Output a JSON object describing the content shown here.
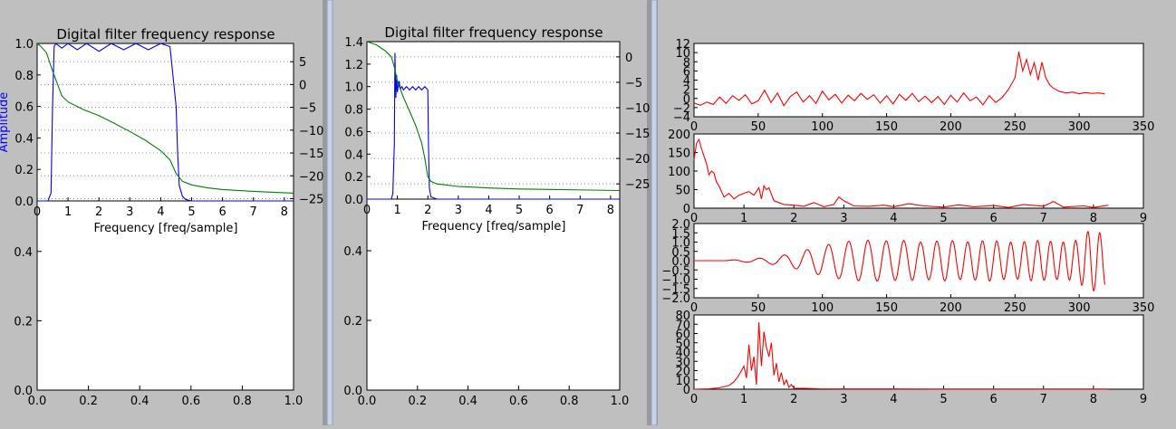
{
  "colors": {
    "window_bg": "#bfbfbf",
    "axes_bg": "#ffffff",
    "blue_trace": "#0000ff",
    "green_trace": "#008000",
    "red_trace": "#ff0000",
    "grid": "#888888",
    "amplitude_label": "#0000ff"
  },
  "chart_data": [
    {
      "id": "left_panel",
      "type": "line",
      "title": "Digital filter frequency response",
      "xlabel": "Frequency [freq/sample]",
      "ylabel_left": "Amplitude",
      "ylabel_right": "",
      "top_axes": {
        "xlim": [
          0,
          8.3
        ],
        "xticks": [
          "0",
          "1",
          "2",
          "3",
          "4",
          "5",
          "6",
          "7",
          "8"
        ],
        "left_ylim": [
          0,
          1.0
        ],
        "left_yticks": [
          "0.0",
          "0.2",
          "0.4",
          "0.6",
          "0.8",
          "1.0"
        ],
        "right_ylim": [
          -25.5,
          9
        ],
        "right_yticks": [
          "5",
          "0",
          "−5",
          "−10",
          "−15",
          "−20",
          "−25"
        ],
        "grid": "horizontal dotted at right-axis ticks",
        "series": [
          {
            "color": "blue",
            "axis": "left",
            "x": [
              0,
              0.35,
              0.45,
              0.5,
              0.55,
              0.6,
              0.8,
              1.0,
              1.3,
              1.6,
              2.0,
              2.4,
              2.8,
              3.2,
              3.6,
              4.0,
              4.3,
              4.5,
              4.55,
              4.6,
              4.7,
              4.8,
              5.0,
              5.5,
              8.3
            ],
            "y": [
              0,
              0,
              0.05,
              0.6,
              0.98,
              1.0,
              0.97,
              1.0,
              0.96,
              1.0,
              0.95,
              1.0,
              0.96,
              1.0,
              0.96,
              1.0,
              0.98,
              0.6,
              0.3,
              0.1,
              0.03,
              0.01,
              0,
              0,
              0
            ]
          },
          {
            "color": "green",
            "axis": "right",
            "x": [
              0,
              0.1,
              0.3,
              0.5,
              0.8,
              1.0,
              1.5,
              2.0,
              2.5,
              3.0,
              3.5,
              4.0,
              4.3,
              4.5,
              4.7,
              5.0,
              5.5,
              6.0,
              7.0,
              8.3
            ],
            "y": [
              9,
              8.5,
              7,
              3,
              -2.5,
              -3.8,
              -5.5,
              -6.8,
              -8.5,
              -10.3,
              -12.2,
              -14.5,
              -16.5,
              -19.5,
              -21.2,
              -22,
              -22.6,
              -23,
              -23.4,
              -23.8
            ]
          }
        ]
      },
      "background_axes": {
        "xlim": [
          0.0,
          1.0
        ],
        "ylim": [
          0.0,
          1.0
        ],
        "xticks": [
          "0.0",
          "0.2",
          "0.4",
          "0.6",
          "0.8",
          "1.0"
        ],
        "yticks": [
          "0.0",
          "0.2",
          "0.4"
        ]
      }
    },
    {
      "id": "middle_panel",
      "type": "line",
      "title": "Digital filter frequency response",
      "xlabel": "Frequency [freq/sample]",
      "ylabel_left": "",
      "ylabel_right": "",
      "top_axes": {
        "xlim": [
          0,
          8.3
        ],
        "xticks": [
          "0",
          "1",
          "2",
          "3",
          "4",
          "5",
          "6",
          "7",
          "8"
        ],
        "left_ylim": [
          0,
          1.4
        ],
        "left_yticks": [
          "0.0",
          "0.2",
          "0.4",
          "0.6",
          "0.8",
          "1.0",
          "1.2",
          "1.4"
        ],
        "right_ylim": [
          -28,
          3
        ],
        "right_yticks": [
          "0",
          "−5",
          "−10",
          "−15",
          "−20",
          "−25"
        ],
        "grid": "horizontal dotted at right-axis ticks",
        "series": [
          {
            "color": "blue",
            "axis": "left",
            "x": [
              0,
              0.8,
              0.85,
              0.9,
              0.92,
              0.95,
              0.98,
              1.0,
              1.05,
              1.1,
              1.15,
              1.2,
              1.3,
              1.4,
              1.5,
              1.6,
              1.7,
              1.8,
              1.9,
              2.0,
              2.02,
              2.05,
              2.1,
              2.3,
              8.3
            ],
            "y": [
              0,
              0,
              0.05,
              0.5,
              1.3,
              0.9,
              1.1,
              0.95,
              1.05,
              0.98,
              1.0,
              0.97,
              1.0,
              0.97,
              1.0,
              0.97,
              1.0,
              0.97,
              1.0,
              0.97,
              0.5,
              0.1,
              0.02,
              0,
              0
            ]
          },
          {
            "color": "green",
            "axis": "right",
            "x": [
              0,
              0.3,
              0.6,
              0.8,
              0.9,
              1.0,
              1.2,
              1.4,
              1.6,
              1.8,
              1.9,
              2.0,
              2.1,
              2.3,
              3.0,
              4.0,
              5.0,
              6.0,
              8.3
            ],
            "y": [
              3,
              2.4,
              1.2,
              0,
              -2,
              -4.8,
              -8,
              -10.7,
              -13.5,
              -17,
              -20,
              -23.6,
              -24.5,
              -25,
              -25.5,
              -25.8,
              -26,
              -26.1,
              -26.3
            ]
          }
        ]
      },
      "background_axes": {
        "xlim": [
          0.0,
          1.0
        ],
        "ylim": [
          0.0,
          1.0
        ],
        "xticks": [
          "0.0",
          "0.2",
          "0.4",
          "0.6",
          "0.8",
          "1.0"
        ],
        "yticks": [
          "0.0",
          "0.2",
          "0.4"
        ]
      }
    },
    {
      "id": "right_panel_1",
      "type": "line",
      "title": "",
      "xlim": [
        0,
        350
      ],
      "ylim": [
        -4,
        12
      ],
      "xticks": [
        "0",
        "50",
        "100",
        "150",
        "200",
        "250",
        "300",
        "350"
      ],
      "yticks": [
        "12",
        "10",
        "8",
        "6",
        "4",
        "2",
        "0",
        "−2",
        "−4"
      ],
      "series": [
        {
          "color": "red",
          "x": [
            0,
            5,
            10,
            15,
            20,
            25,
            30,
            35,
            40,
            45,
            50,
            55,
            60,
            65,
            70,
            75,
            80,
            85,
            90,
            95,
            100,
            105,
            110,
            115,
            120,
            125,
            130,
            135,
            140,
            145,
            150,
            155,
            160,
            165,
            170,
            175,
            180,
            185,
            190,
            195,
            200,
            205,
            210,
            215,
            220,
            225,
            230,
            235,
            240,
            245,
            250,
            253,
            256,
            259,
            262,
            265,
            268,
            271,
            274,
            277,
            280,
            285,
            290,
            295,
            300,
            305,
            310,
            315,
            320
          ],
          "y": [
            -1,
            -1.5,
            -0.8,
            -1.3,
            0.3,
            -1.1,
            0.6,
            -0.4,
            0.8,
            -1.2,
            -0.5,
            1.8,
            -0.9,
            1.2,
            -1.6,
            0.4,
            1.4,
            -0.8,
            0.6,
            -1.1,
            1.6,
            -0.3,
            0.9,
            -1.0,
            0.7,
            -0.5,
            1.1,
            -0.2,
            0.8,
            -1.0,
            0.6,
            -1.2,
            0.9,
            -0.4,
            1.1,
            -0.7,
            0.5,
            -0.9,
            0.4,
            -1.3,
            0.7,
            -0.8,
            1.2,
            -0.5,
            0.3,
            -1.4,
            0.6,
            -0.9,
            0.2,
            2.0,
            4.5,
            10.2,
            6.0,
            8.5,
            5.2,
            7.8,
            4.0,
            7.9,
            4.5,
            3.0,
            2.2,
            1.5,
            1.2,
            1.4,
            1.0,
            1.3,
            1.1,
            1.2,
            1.0
          ]
        }
      ]
    },
    {
      "id": "right_panel_2",
      "type": "line",
      "title": "",
      "xlim": [
        0,
        9
      ],
      "ylim": [
        0,
        200
      ],
      "xticks": [
        "0",
        "1",
        "2",
        "3",
        "4",
        "5",
        "6",
        "7",
        "8",
        "9"
      ],
      "yticks": [
        "200",
        "150",
        "100",
        "50",
        "0"
      ],
      "series": [
        {
          "color": "red",
          "x": [
            0,
            0.05,
            0.1,
            0.15,
            0.2,
            0.25,
            0.3,
            0.35,
            0.4,
            0.45,
            0.5,
            0.6,
            0.7,
            0.8,
            0.9,
            1.0,
            1.1,
            1.2,
            1.3,
            1.35,
            1.4,
            1.45,
            1.5,
            1.6,
            1.8,
            2.0,
            2.2,
            2.4,
            2.6,
            2.8,
            2.9,
            3.0,
            3.2,
            3.5,
            3.8,
            4.0,
            4.3,
            4.6,
            5.0,
            5.3,
            5.6,
            6.0,
            6.3,
            6.6,
            7.0,
            7.2,
            7.4,
            7.8,
            8.0,
            8.3
          ],
          "y": [
            130,
            175,
            185,
            160,
            140,
            120,
            90,
            100,
            95,
            70,
            60,
            30,
            40,
            25,
            35,
            40,
            45,
            35,
            55,
            25,
            60,
            50,
            55,
            20,
            10,
            8,
            5,
            15,
            4,
            10,
            30,
            20,
            6,
            5,
            8,
            4,
            12,
            6,
            3,
            9,
            4,
            7,
            2,
            10,
            5,
            18,
            3,
            6,
            2,
            8
          ]
        }
      ]
    },
    {
      "id": "right_panel_3",
      "type": "line",
      "title": "",
      "xlim": [
        0,
        350
      ],
      "ylim": [
        -2.0,
        2.0
      ],
      "xticks": [
        "0",
        "50",
        "100",
        "150",
        "200",
        "250",
        "300",
        "350"
      ],
      "yticks": [
        "2.0",
        "1.5",
        "1.0",
        "0.5",
        "0.0",
        "−0.5",
        "−1.0",
        "−1.5",
        "−2.0"
      ],
      "series": [
        {
          "color": "red",
          "x_start": 0,
          "x_end": 320,
          "form": "damped-onset oscillation",
          "amplitude_samples": [
            0,
            0,
            0,
            0.05,
            0.1,
            0.15,
            0.25,
            0.4,
            0.6,
            0.8,
            0.95,
            1.05,
            1.1,
            1.1,
            1.05,
            1.1,
            1.0,
            1.05,
            1.1,
            1.0,
            1.05,
            1.1,
            1.0,
            1.0,
            1.1,
            1.05,
            1.0,
            1.1,
            1.7,
            1.4
          ]
        }
      ]
    },
    {
      "id": "right_panel_4",
      "type": "line",
      "title": "",
      "xlim": [
        0,
        9
      ],
      "ylim": [
        0,
        80
      ],
      "xticks": [
        "0",
        "1",
        "2",
        "3",
        "4",
        "5",
        "6",
        "7",
        "8",
        "9"
      ],
      "yticks": [
        "80",
        "70",
        "60",
        "50",
        "40",
        "30",
        "20",
        "10",
        "0"
      ],
      "series": [
        {
          "color": "red",
          "x": [
            0,
            0.3,
            0.5,
            0.7,
            0.8,
            0.9,
            1.0,
            1.05,
            1.1,
            1.15,
            1.2,
            1.25,
            1.3,
            1.35,
            1.4,
            1.45,
            1.5,
            1.55,
            1.6,
            1.65,
            1.7,
            1.75,
            1.8,
            1.85,
            1.9,
            1.95,
            2.0,
            2.2,
            2.5,
            3.0,
            4.0,
            5.0,
            6.0,
            7.0,
            8.0,
            8.3
          ],
          "y": [
            0,
            0.5,
            1.5,
            4,
            8,
            15,
            25,
            12,
            48,
            20,
            35,
            5,
            72,
            25,
            62,
            45,
            35,
            50,
            15,
            28,
            8,
            18,
            5,
            10,
            2,
            5,
            1,
            1,
            0.5,
            0.3,
            0.3,
            0.2,
            0.2,
            0.2,
            0.2,
            0.2
          ]
        }
      ]
    }
  ]
}
